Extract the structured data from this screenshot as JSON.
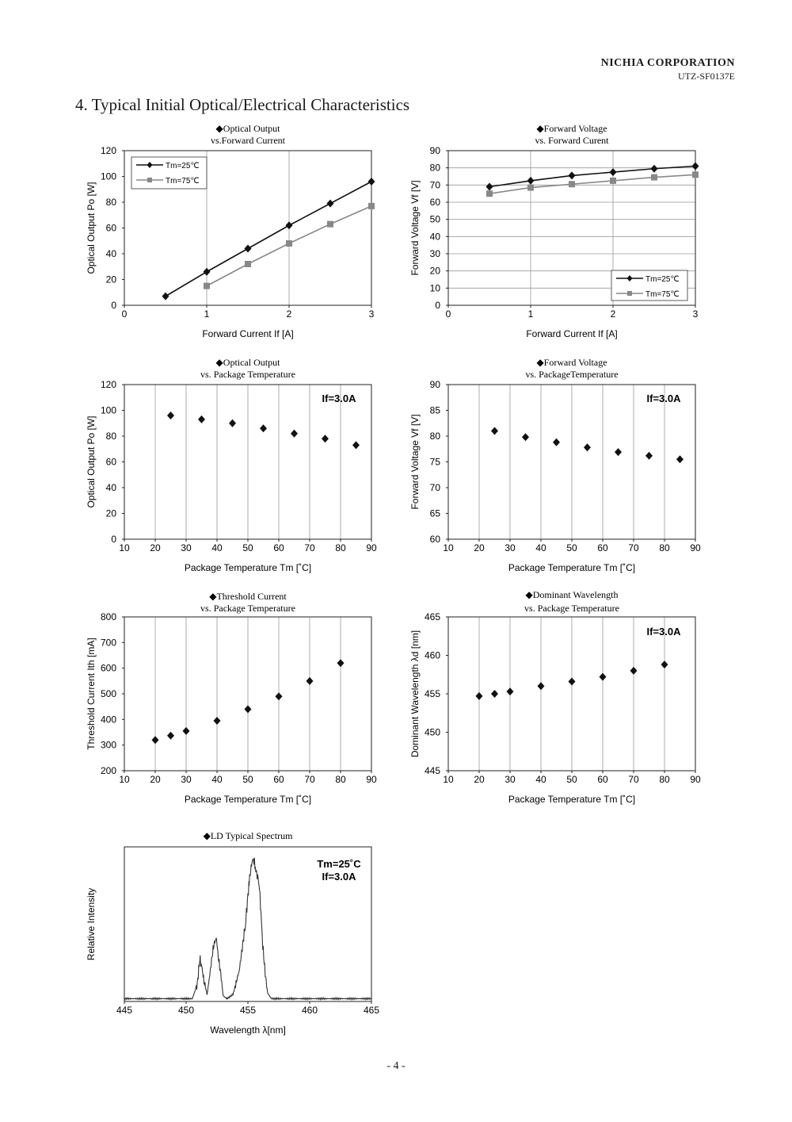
{
  "header": {
    "company": "NICHIA CORPORATION",
    "doc_id": "UTZ-SF0137E"
  },
  "section_title": "4.  Typical Initial Optical/Electrical Characteristics",
  "page_number": "- 4 -",
  "chart_data": [
    {
      "id": "po_if",
      "type": "line",
      "title": [
        "◆Optical Output",
        "vs.Forward Current"
      ],
      "xlabel": "Forward Current If [A]",
      "ylabel": "Optical Output Po [W]",
      "xlim": [
        0,
        3
      ],
      "ylim": [
        0,
        120
      ],
      "xticks": [
        0,
        1,
        2,
        3
      ],
      "yticks": [
        0,
        20,
        40,
        60,
        80,
        100,
        120
      ],
      "grid": "vertical",
      "legend": "top-left",
      "series": [
        {
          "name": "Tm=25℃",
          "marker": "diamond",
          "color": "#111111",
          "x": [
            0.5,
            1.0,
            1.5,
            2.0,
            2.5,
            3.0
          ],
          "y": [
            7,
            26,
            44,
            62,
            79,
            96
          ]
        },
        {
          "name": "Tm=75℃",
          "marker": "square",
          "color": "#888888",
          "x": [
            1.0,
            1.5,
            2.0,
            2.5,
            3.0
          ],
          "y": [
            15,
            32,
            48,
            63,
            77
          ]
        }
      ]
    },
    {
      "id": "vf_if",
      "type": "line",
      "title": [
        "◆Forward Voltage",
        "vs. Forward Curent"
      ],
      "xlabel": "Forward Current If [A]",
      "ylabel": "Forward Voltage Vf [V]",
      "xlim": [
        0,
        3
      ],
      "ylim": [
        0,
        90
      ],
      "xticks": [
        0,
        1,
        2,
        3
      ],
      "yticks": [
        0,
        10,
        20,
        30,
        40,
        50,
        60,
        70,
        80,
        90
      ],
      "grid": "both",
      "legend": "bottom-right",
      "series": [
        {
          "name": "Tm=25℃",
          "marker": "diamond",
          "color": "#111111",
          "x": [
            0.5,
            1.0,
            1.5,
            2.0,
            2.5,
            3.0
          ],
          "y": [
            69,
            72.5,
            75.5,
            77.5,
            79.5,
            81
          ]
        },
        {
          "name": "Tm=75℃",
          "marker": "square",
          "color": "#888888",
          "x": [
            0.5,
            1.0,
            1.5,
            2.0,
            2.5,
            3.0
          ],
          "y": [
            65,
            68.5,
            70.5,
            72.5,
            74.5,
            76
          ]
        }
      ]
    },
    {
      "id": "po_tm",
      "type": "scatter",
      "title": [
        "◆Optical Output",
        "vs. Package Temperature"
      ],
      "xlabel": "Package Temperature Tm [˚C]",
      "ylabel": "Optical Output Po [W]",
      "annotation": [
        "If=3.0A"
      ],
      "xlim": [
        10,
        90
      ],
      "ylim": [
        0,
        120
      ],
      "xticks": [
        10,
        20,
        30,
        40,
        50,
        60,
        70,
        80,
        90
      ],
      "yticks": [
        0,
        20,
        40,
        60,
        80,
        100,
        120
      ],
      "grid": "vertical",
      "series": [
        {
          "marker": "diamond",
          "color": "#111111",
          "x": [
            25,
            35,
            45,
            55,
            65,
            75,
            85
          ],
          "y": [
            96,
            93,
            90,
            86,
            82,
            78,
            73
          ]
        }
      ]
    },
    {
      "id": "vf_tm",
      "type": "scatter",
      "title": [
        "◆Forward Voltage",
        "vs. PackageTemperature"
      ],
      "xlabel": "Package Temperature Tm [˚C]",
      "ylabel": "Forward Voltage Vf [V]",
      "annotation": [
        "If=3.0A"
      ],
      "xlim": [
        10,
        90
      ],
      "ylim": [
        60,
        90
      ],
      "xticks": [
        10,
        20,
        30,
        40,
        50,
        60,
        70,
        80,
        90
      ],
      "yticks": [
        60,
        65,
        70,
        75,
        80,
        85,
        90
      ],
      "grid": "vertical",
      "series": [
        {
          "marker": "diamond",
          "color": "#111111",
          "x": [
            25,
            35,
            45,
            55,
            65,
            75,
            85
          ],
          "y": [
            81,
            79.8,
            78.8,
            77.8,
            76.9,
            76.2,
            75.5
          ]
        }
      ]
    },
    {
      "id": "ith_tm",
      "type": "scatter",
      "title": [
        "◆Threshold Current",
        "vs. Package Temperature"
      ],
      "xlabel": "Package Temperature Tm [˚C]",
      "ylabel": "Threshold Current  Ith [mA]",
      "xlim": [
        10,
        90
      ],
      "ylim": [
        200,
        800
      ],
      "xticks": [
        10,
        20,
        30,
        40,
        50,
        60,
        70,
        80,
        90
      ],
      "yticks": [
        200,
        300,
        400,
        500,
        600,
        700,
        800
      ],
      "grid": "vertical",
      "series": [
        {
          "marker": "diamond",
          "color": "#111111",
          "x": [
            20,
            25,
            30,
            40,
            50,
            60,
            70,
            80
          ],
          "y": [
            320,
            337,
            355,
            395,
            440,
            490,
            550,
            620
          ]
        }
      ]
    },
    {
      "id": "wl_tm",
      "type": "scatter",
      "title": [
        "◆Dominant Wavelength",
        "vs. Package Temperature"
      ],
      "xlabel": "Package Temperature Tm [˚C]",
      "ylabel": "Dominant Wavelength λd [nm]",
      "annotation": [
        "If=3.0A"
      ],
      "xlim": [
        10,
        90
      ],
      "ylim": [
        445,
        465
      ],
      "xticks": [
        10,
        20,
        30,
        40,
        50,
        60,
        70,
        80,
        90
      ],
      "yticks": [
        445,
        450,
        455,
        460,
        465
      ],
      "grid": "vertical",
      "series": [
        {
          "marker": "diamond",
          "color": "#111111",
          "x": [
            20,
            25,
            30,
            40,
            50,
            60,
            70,
            80
          ],
          "y": [
            454.7,
            455.0,
            455.3,
            456.0,
            456.6,
            457.2,
            458.0,
            458.8
          ]
        }
      ]
    },
    {
      "id": "spectrum",
      "type": "line",
      "title": [
        "◆LD Typical Spectrum"
      ],
      "xlabel": "Wavelength  λ[nm]",
      "ylabel": "Relative Intensity",
      "annotation": [
        "Tm=25˚C",
        "If=3.0A"
      ],
      "xlim": [
        445,
        465
      ],
      "ylim": [
        0,
        1.1
      ],
      "xticks": [
        445,
        450,
        455,
        460,
        465
      ],
      "yticks": [],
      "grid": "none",
      "series": [
        {
          "color": "#333333",
          "x": [
            445,
            448,
            450.5,
            450.9,
            451.1,
            451.25,
            451.45,
            451.7,
            451.9,
            452.1,
            452.25,
            452.45,
            452.6,
            452.8,
            453.0,
            453.3,
            453.8,
            454.3,
            454.8,
            455.1,
            455.3,
            455.45,
            455.6,
            455.75,
            455.9,
            456.05,
            456.2,
            456.4,
            456.6,
            456.9,
            457.5,
            465
          ],
          "y": [
            0.02,
            0.02,
            0.02,
            0.12,
            0.3,
            0.26,
            0.14,
            0.05,
            0.18,
            0.32,
            0.41,
            0.45,
            0.32,
            0.2,
            0.04,
            0.02,
            0.05,
            0.22,
            0.55,
            0.85,
            0.98,
            1.02,
            0.95,
            0.9,
            0.85,
            0.65,
            0.4,
            0.2,
            0.06,
            0.02,
            0.02,
            0.02
          ]
        }
      ]
    }
  ]
}
